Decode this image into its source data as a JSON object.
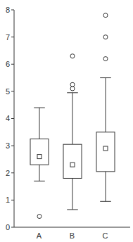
{
  "chart_data": {
    "type": "box",
    "categories": [
      "A",
      "B",
      "C"
    ],
    "boxes": [
      {
        "whisker_low": 1.7,
        "q1": 2.3,
        "median": 2.6,
        "q3": 3.25,
        "whisker_high": 4.4,
        "outliers": [
          0.4
        ]
      },
      {
        "whisker_low": 0.65,
        "q1": 1.8,
        "median": 2.3,
        "q3": 3.05,
        "whisker_high": 4.95,
        "outliers": [
          5.1,
          5.25,
          6.3
        ]
      },
      {
        "whisker_low": 0.95,
        "q1": 2.05,
        "median": 2.9,
        "q3": 3.5,
        "whisker_high": 5.5,
        "outliers": [
          6.2,
          7.0,
          7.8
        ]
      }
    ],
    "ylim": [
      0,
      8
    ],
    "yticks": [
      0,
      1,
      2,
      3,
      4,
      5,
      6,
      7,
      8
    ],
    "grid": false
  }
}
